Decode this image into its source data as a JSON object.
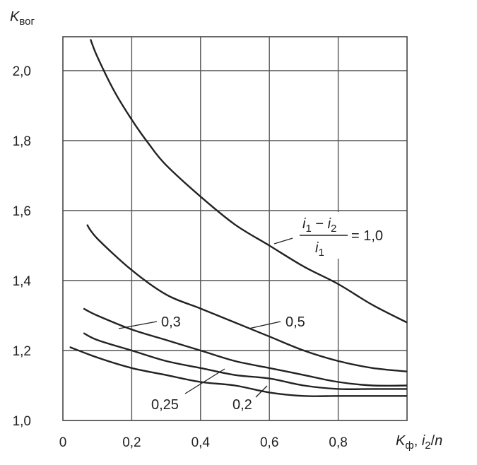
{
  "chart_data": {
    "type": "line",
    "ylabel": {
      "main": "K",
      "sub": "вог"
    },
    "xlabel": {
      "k": "K",
      "k_sub": "ф",
      "sep": ", ",
      "i": "i",
      "i_sub": "2",
      "slash": "/",
      "n": "n"
    },
    "xlim": [
      0,
      1.0
    ],
    "ylim": [
      1.0,
      2.0
    ],
    "x_ticks": [
      0,
      0.2,
      0.4,
      0.6,
      0.8
    ],
    "x_tick_labels": [
      "0",
      "0,2",
      "0,4",
      "0,6",
      "0,8"
    ],
    "y_ticks": [
      1.0,
      1.2,
      1.4,
      1.6,
      1.8,
      2.0
    ],
    "y_tick_labels": [
      "1,0",
      "1,2",
      "1,4",
      "1,6",
      "1,8",
      "2,0"
    ],
    "grid": true,
    "series_label_formula": {
      "num_a": "i",
      "num_a_sub": "1",
      "minus": " − ",
      "num_b": "i",
      "num_b_sub": "2",
      "den": "i",
      "den_sub": "1",
      "eq": "= 1,0"
    },
    "series": [
      {
        "name": "1,0",
        "x": [
          0.08,
          0.1,
          0.15,
          0.2,
          0.25,
          0.3,
          0.4,
          0.5,
          0.6,
          0.7,
          0.8,
          0.9,
          1.0
        ],
        "y": [
          2.09,
          2.04,
          1.94,
          1.86,
          1.79,
          1.73,
          1.64,
          1.56,
          1.5,
          1.44,
          1.39,
          1.33,
          1.28
        ]
      },
      {
        "name": "0,5",
        "x": [
          0.07,
          0.1,
          0.2,
          0.3,
          0.4,
          0.5,
          0.6,
          0.7,
          0.8,
          0.9,
          1.0
        ],
        "y": [
          1.56,
          1.52,
          1.43,
          1.36,
          1.32,
          1.28,
          1.24,
          1.2,
          1.17,
          1.15,
          1.14
        ]
      },
      {
        "name": "0,3",
        "x": [
          0.06,
          0.1,
          0.2,
          0.3,
          0.4,
          0.5,
          0.6,
          0.7,
          0.8,
          0.9,
          1.0
        ],
        "y": [
          1.32,
          1.3,
          1.26,
          1.23,
          1.2,
          1.17,
          1.15,
          1.13,
          1.11,
          1.1,
          1.1
        ]
      },
      {
        "name": "0,25",
        "x": [
          0.06,
          0.1,
          0.2,
          0.3,
          0.4,
          0.5,
          0.6,
          0.7,
          0.8,
          0.9,
          1.0
        ],
        "y": [
          1.25,
          1.23,
          1.2,
          1.17,
          1.15,
          1.13,
          1.12,
          1.1,
          1.09,
          1.09,
          1.09
        ]
      },
      {
        "name": "0,2",
        "x": [
          0.02,
          0.1,
          0.2,
          0.3,
          0.4,
          0.5,
          0.6,
          0.7,
          0.8,
          0.9,
          1.0
        ],
        "y": [
          1.21,
          1.18,
          1.15,
          1.13,
          1.11,
          1.1,
          1.08,
          1.07,
          1.07,
          1.07,
          1.07
        ]
      }
    ]
  }
}
